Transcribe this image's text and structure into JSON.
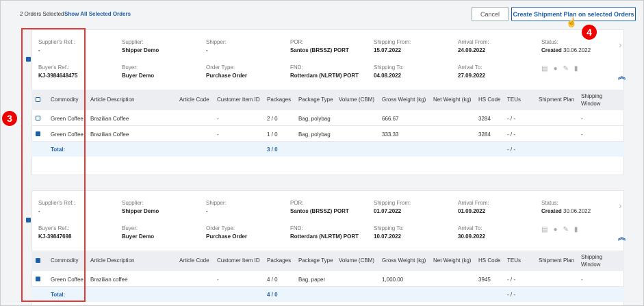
{
  "header": {
    "selected": "2 Orders Selected",
    "link": "Show All Selected Orders",
    "cancel": "Cancel",
    "create": "Create Shipment Plan on selected Orders"
  },
  "annotations": [
    "3",
    "4"
  ],
  "info_labels": [
    "Supplier's Ref.:",
    "Supplier:",
    "Shipper:",
    "POR:",
    "Shipping From:",
    "Arrival From:",
    "Status:",
    "Buyer's Ref.:",
    "Buyer:",
    "Order Type:",
    "FND:",
    "Shipping To:",
    "Arrival To:"
  ],
  "columns": [
    "Commodity",
    "Article Description",
    "Article Code",
    "Customer Item ID",
    "Packages",
    "Package Type",
    "Volume (CBM)",
    "Gross Weight (kg)",
    "Net Weight (kg)",
    "HS Code",
    "TEUs",
    "Shipment Plan",
    "Shipping Window"
  ],
  "total_label": "Total:",
  "orders": [
    {
      "info": [
        "-",
        "Shipper Demo",
        "-",
        "Santos (BRSSZ) PORT",
        "15.07.2022",
        "24.09.2022",
        "Created",
        "KJ-3984648475",
        "Buyer Demo",
        "Purchase Order",
        "Rotterdam (NLRTM) PORT",
        "04.08.2022",
        "27.09.2022"
      ],
      "status_date": "30.06.2022",
      "rows": [
        [
          "Green Coffee",
          "Brazilian Coffee",
          null,
          "-",
          "2 / 0",
          "Bag, polybag",
          null,
          "666.67",
          null,
          "3284",
          "- / -",
          null,
          "-"
        ],
        [
          "Green Coffee",
          "Brazilian Coffee",
          null,
          "-",
          "1 / 0",
          "Bag, polybag",
          null,
          "333.33",
          null,
          "3284",
          "- / -",
          null,
          "-"
        ]
      ],
      "total_packages": "3 / 0",
      "total_teus": "- / -"
    },
    {
      "info": [
        "-",
        "Shipper Demo",
        "-",
        "Santos (BRSSZ) PORT",
        "01.07.2022",
        "01.09.2022",
        "Created",
        "KJ-39847698",
        "Buyer Demo",
        "Purchase Order",
        "Rotterdam (NLRTM) PORT",
        "10.07.2022",
        "30.09.2022"
      ],
      "status_date": "30.06.2022",
      "rows": [
        [
          "Green Coffee",
          "Brazilian coffee",
          null,
          "-",
          "4 / 0",
          "Bag, paper",
          null,
          "1,000.00",
          null,
          "3945",
          "- / -",
          null,
          "-"
        ]
      ],
      "total_packages": "4 / 0",
      "total_teus": "- / -"
    }
  ]
}
